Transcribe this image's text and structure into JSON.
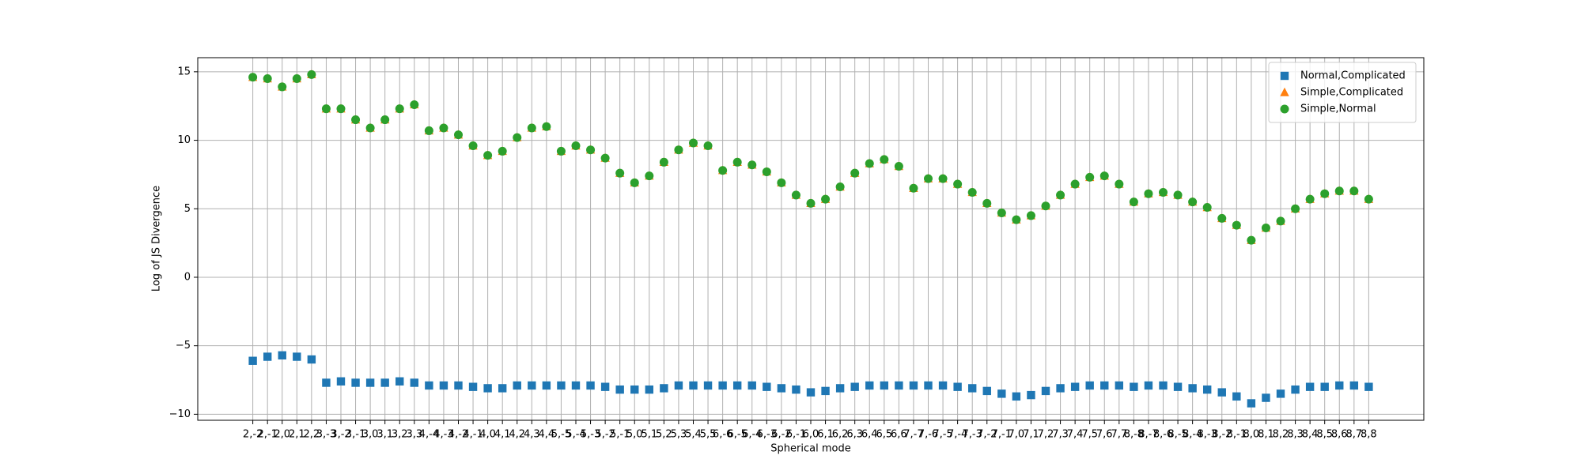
{
  "chart_data": {
    "type": "scatter",
    "xlabel": "Spherical mode",
    "ylabel": "Log of JS Divergence",
    "categories": [
      "2,-2",
      "2,-1",
      "2,0",
      "2,1",
      "2,2",
      "3,-3",
      "3,-2",
      "3,-1",
      "3,0",
      "3,1",
      "3,2",
      "3,3",
      "4,-4",
      "4,-3",
      "4,-2",
      "4,-1",
      "4,0",
      "4,1",
      "4,2",
      "4,3",
      "4,4",
      "5,-5",
      "5,-4",
      "5,-3",
      "5,-2",
      "5,-1",
      "5,0",
      "5,1",
      "5,2",
      "5,3",
      "5,4",
      "5,5",
      "6,-6",
      "6,-5",
      "6,-4",
      "6,-3",
      "6,-2",
      "6,-1",
      "6,0",
      "6,1",
      "6,2",
      "6,3",
      "6,4",
      "6,5",
      "6,6",
      "7,-7",
      "7,-6",
      "7,-5",
      "7,-4",
      "7,-3",
      "7,-2",
      "7,-1",
      "7,0",
      "7,1",
      "7,2",
      "7,3",
      "7,4",
      "7,5",
      "7,6",
      "7,7",
      "8,-8",
      "8,-7",
      "8,-6",
      "8,-5",
      "8,-4",
      "8,-3",
      "8,-2",
      "8,-1",
      "8,0",
      "8,1",
      "8,2",
      "8,3",
      "8,4",
      "8,5",
      "8,6",
      "8,7",
      "8,8"
    ],
    "series": [
      {
        "name": "Normal,Complicated",
        "color": "#1f77b4",
        "marker": "square",
        "values": [
          -6.1,
          -5.8,
          -5.7,
          -5.8,
          -6.0,
          -7.7,
          -7.6,
          -7.7,
          -7.7,
          -7.7,
          -7.6,
          -7.7,
          -7.9,
          -7.9,
          -7.9,
          -8.0,
          -8.1,
          -8.1,
          -7.9,
          -7.9,
          -7.9,
          -7.9,
          -7.9,
          -7.9,
          -8.0,
          -8.2,
          -8.2,
          -8.2,
          -8.1,
          -7.9,
          -7.9,
          -7.9,
          -7.9,
          -7.9,
          -7.9,
          -8.0,
          -8.1,
          -8.2,
          -8.4,
          -8.3,
          -8.1,
          -8.0,
          -7.9,
          -7.9,
          -7.9,
          -7.9,
          -7.9,
          -7.9,
          -8.0,
          -8.1,
          -8.3,
          -8.5,
          -8.7,
          -8.6,
          -8.3,
          -8.1,
          -8.0,
          -7.9,
          -7.9,
          -7.9,
          -8.0,
          -7.9,
          -7.9,
          -8.0,
          -8.1,
          -8.2,
          -8.4,
          -8.7,
          -9.2,
          -8.8,
          -8.5,
          -8.2,
          -8.0,
          -8.0,
          -7.9,
          -7.9,
          -8.0
        ]
      },
      {
        "name": "Simple,Complicated",
        "color": "#ff7f0e",
        "marker": "triangle",
        "values": [
          14.6,
          14.5,
          13.9,
          14.5,
          14.8,
          12.3,
          12.3,
          11.5,
          10.9,
          11.5,
          12.3,
          12.6,
          10.7,
          10.9,
          10.4,
          9.6,
          8.9,
          9.2,
          10.2,
          10.9,
          11.0,
          9.2,
          9.6,
          9.3,
          8.7,
          7.6,
          6.9,
          7.4,
          8.4,
          9.3,
          9.8,
          9.6,
          7.8,
          8.4,
          8.2,
          7.7,
          6.9,
          6.0,
          5.4,
          5.7,
          6.6,
          7.6,
          8.3,
          8.6,
          8.1,
          6.5,
          7.2,
          7.2,
          6.8,
          6.2,
          5.4,
          4.7,
          4.2,
          4.5,
          5.2,
          6.0,
          6.8,
          7.3,
          7.4,
          6.8,
          5.5,
          6.1,
          6.2,
          6.0,
          5.5,
          5.1,
          4.3,
          3.8,
          2.7,
          3.6,
          4.1,
          5.0,
          5.7,
          6.1,
          6.3,
          6.3,
          5.7
        ]
      },
      {
        "name": "Simple,Normal",
        "color": "#2ca02c",
        "marker": "circle",
        "values": [
          14.6,
          14.5,
          13.9,
          14.5,
          14.8,
          12.3,
          12.3,
          11.5,
          10.9,
          11.5,
          12.3,
          12.6,
          10.7,
          10.9,
          10.4,
          9.6,
          8.9,
          9.2,
          10.2,
          10.9,
          11.0,
          9.2,
          9.6,
          9.3,
          8.7,
          7.6,
          6.9,
          7.4,
          8.4,
          9.3,
          9.8,
          9.6,
          7.8,
          8.4,
          8.2,
          7.7,
          6.9,
          6.0,
          5.4,
          5.7,
          6.6,
          7.6,
          8.3,
          8.6,
          8.1,
          6.5,
          7.2,
          7.2,
          6.8,
          6.2,
          5.4,
          4.7,
          4.2,
          4.5,
          5.2,
          6.0,
          6.8,
          7.3,
          7.4,
          6.8,
          5.5,
          6.1,
          6.2,
          6.0,
          5.5,
          5.1,
          4.3,
          3.8,
          2.7,
          3.6,
          4.1,
          5.0,
          5.7,
          6.1,
          6.3,
          6.3,
          5.7
        ]
      }
    ],
    "ylim": [
      -10.44,
      16.03
    ],
    "yticks": [
      {
        "value": -10,
        "label": "−10"
      },
      {
        "value": -5,
        "label": "−5"
      },
      0,
      5,
      10,
      15
    ],
    "grid": true,
    "legend": "upper right"
  }
}
